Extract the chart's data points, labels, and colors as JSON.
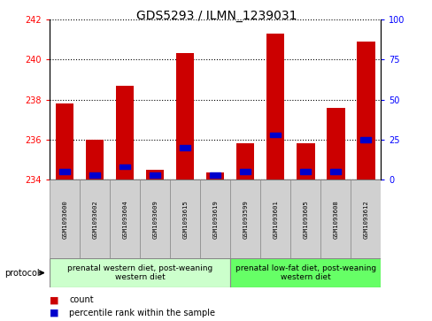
{
  "title": "GDS5293 / ILMN_1239031",
  "samples": [
    "GSM1093600",
    "GSM1093602",
    "GSM1093604",
    "GSM1093609",
    "GSM1093615",
    "GSM1093619",
    "GSM1093599",
    "GSM1093601",
    "GSM1093605",
    "GSM1093608",
    "GSM1093612"
  ],
  "count_values": [
    237.8,
    236.0,
    238.7,
    234.5,
    240.3,
    234.35,
    235.8,
    241.3,
    235.8,
    237.6,
    240.9
  ],
  "percentile_values": [
    5,
    3,
    8,
    3,
    20,
    3,
    5,
    28,
    5,
    5,
    25
  ],
  "ylim_left": [
    234,
    242
  ],
  "ylim_right": [
    0,
    100
  ],
  "yticks_left": [
    234,
    236,
    238,
    240,
    242
  ],
  "yticks_right": [
    0,
    25,
    50,
    75,
    100
  ],
  "bar_color": "#cc0000",
  "marker_color": "#0000cc",
  "group1_label": "prenatal western diet, post-weaning\nwestern diet",
  "group2_label": "prenatal low-fat diet, post-weaning\nwestern diet",
  "group1_color": "#ccffcc",
  "group2_color": "#66ff66",
  "protocol_label": "protocol",
  "legend_count": "count",
  "legend_percentile": "percentile rank within the sample",
  "plot_bg": "#ffffff",
  "sample_box_color": "#d0d0d0",
  "title_fontsize": 10,
  "tick_fontsize": 7,
  "bar_width": 0.6,
  "group1_count": 6,
  "group2_count": 5
}
